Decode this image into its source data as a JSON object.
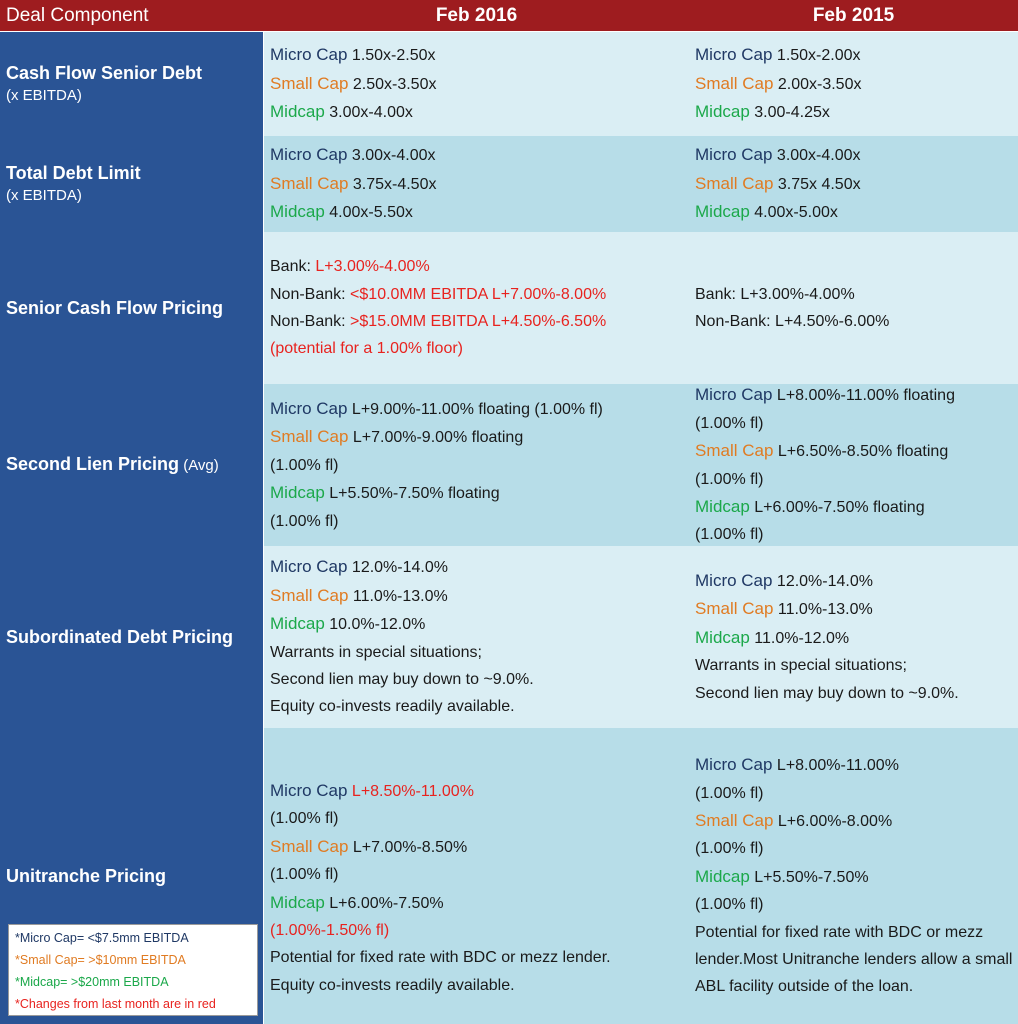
{
  "header": {
    "col0": "Deal Component",
    "col1": "Feb 2016",
    "col2": "Feb 2015"
  },
  "rows": {
    "cash_flow": {
      "label": "Cash Flow Senior Debt",
      "sublabel": "(x EBITDA)",
      "feb2016": {
        "micro_lbl": "Micro Cap",
        "micro_val": " 1.50x-2.50x",
        "small_lbl": "Small Cap",
        "small_val": " 2.50x-3.50x",
        "mid_lbl": "Midcap",
        "mid_val": " 3.00x-4.00x"
      },
      "feb2015": {
        "micro_lbl": "Micro Cap",
        "micro_val": " 1.50x-2.00x",
        "small_lbl": "Small Cap",
        "small_val": "  2.00x-3.50x",
        "mid_lbl": "Midcap",
        "mid_val": " 3.00-4.25x"
      }
    },
    "total_debt": {
      "label": "Total Debt Limit",
      "sublabel": "(x EBITDA)",
      "feb2016": {
        "micro_lbl": "Micro Cap",
        "micro_val": " 3.00x-4.00x",
        "small_lbl": "Small Cap",
        "small_val": "  3.75x-4.50x",
        "mid_lbl": "Midcap",
        "mid_val": " 4.00x-5.50x"
      },
      "feb2015": {
        "micro_lbl": "Micro Cap",
        "micro_val": " 3.00x-4.00x",
        "small_lbl": "Small Cap",
        "small_val": "  3.75x 4.50x",
        "mid_lbl": "Midcap",
        "mid_val": " 4.00x-5.00x"
      }
    },
    "senior_cf": {
      "label": "Senior Cash Flow Pricing",
      "feb2016": {
        "l1_a": "Bank: ",
        "l1_b": "L+3.00%-4.00%",
        "l2_a": "Non-Bank: ",
        "l2_b": "<$10.0MM EBITDA  L+7.00%-8.00%",
        "l3_a": "Non-Bank: ",
        "l3_b": ">$15.0MM EBITDA  L+4.50%-6.50%",
        "l4": "(potential for a 1.00% floor)"
      },
      "feb2015": {
        "l1": "Bank: L+3.00%-4.00%",
        "l2": "Non-Bank: L+4.50%-6.00%"
      }
    },
    "second_lien": {
      "label": "Second Lien Pricing",
      "label_suffix": " (Avg)",
      "feb2016": {
        "micro_lbl": "Micro Cap",
        "micro_val": " L+9.00%-11.00% floating (1.00% fl)",
        "small_lbl": "Small Cap",
        "small_val": " L+7.00%-9.00% floating",
        "small_fl": "(1.00% fl)",
        "mid_lbl": "Midcap",
        "mid_val": " L+5.50%-7.50% floating",
        "mid_fl": "(1.00% fl)"
      },
      "feb2015": {
        "micro_lbl": "Micro Cap",
        "micro_val": " L+8.00%-11.00% floating",
        "micro_fl": "(1.00% fl)",
        "small_lbl": "Small Cap",
        "small_val": " L+6.50%-8.50% floating",
        "small_fl": "(1.00% fl)",
        "mid_lbl": "Midcap",
        "mid_val": "  L+6.00%-7.50% floating",
        "mid_fl": "(1.00% fl)"
      }
    },
    "subordinated": {
      "label": "Subordinated Debt Pricing",
      "feb2016": {
        "micro_lbl": "Micro Cap",
        "micro_val": " 12.0%-14.0%",
        "small_lbl": "Small Cap",
        "small_val": " 11.0%-13.0%",
        "mid_lbl": "Midcap",
        "mid_val": " 10.0%-12.0%",
        "n1": "Warrants in special situations;",
        "n2": "Second lien may buy down to ~9.0%.",
        "n3": "Equity co-invests readily available."
      },
      "feb2015": {
        "micro_lbl": "Micro Cap",
        "micro_val": " 12.0%-14.0%",
        "small_lbl": "Small Cap",
        "small_val": " 11.0%-13.0%",
        "mid_lbl": "Midcap",
        "mid_val": " 11.0%-12.0%",
        "n1": "Warrants in special situations;",
        "n2": "Second lien may buy down to ~9.0%."
      }
    },
    "unitranche": {
      "label": "Unitranche Pricing",
      "feb2016": {
        "micro_lbl": "Micro Cap",
        "micro_val": " L+8.50%-11.00%",
        "micro_fl": "(1.00% fl)",
        "small_lbl": "Small Cap",
        "small_val": " L+7.00%-8.50%",
        "small_fl": "(1.00% fl)",
        "mid_lbl": "Midcap",
        "mid_val": " L+6.00%-7.50%",
        "mid_fl": "(1.00%-1.50% fl)",
        "n1": "Potential for fixed rate with BDC or mezz lender.",
        "n2": "Equity co-invests readily available."
      },
      "feb2015": {
        "micro_lbl": "Micro Cap",
        "micro_val": " L+8.00%-11.00%",
        "micro_fl": "(1.00% fl)",
        "small_lbl": "Small Cap",
        "small_val": " L+6.00%-8.00%",
        "small_fl": "(1.00% fl)",
        "mid_lbl": "Midcap",
        "mid_val": " L+5.50%-7.50%",
        "mid_fl": "(1.00% fl)",
        "notes": "Potential for fixed rate with BDC or mezz lender.Most Unitranche lenders allow a small ABL facility outside of the loan."
      }
    }
  },
  "legend": {
    "micro": "*Micro Cap= <$7.5mm EBITDA",
    "small": "*Small Cap= >$10mm EBITDA",
    "mid": "*Midcap= >$20mm EBITDA",
    "changes": "*Changes from last month are in red"
  },
  "colors": {
    "header_bg": "#9e1c1f",
    "label_bg": "#2a5495",
    "row_light": "#daeef4",
    "row_dark": "#b7dde8",
    "micro": "#1f3864",
    "small": "#e07b22",
    "mid": "#1ba84a",
    "changed": "#e8231f"
  }
}
